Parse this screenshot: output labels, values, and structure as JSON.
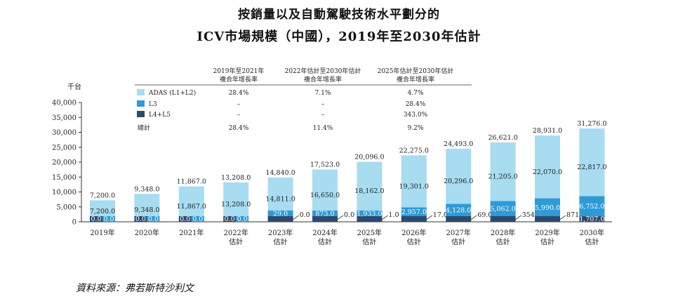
{
  "title_line1": "按銷量以及自動駕駛技術水平劃分的",
  "title_line2": "ICV市場規模（中國），2019年至2030年估計",
  "source": "資料來源：弗若斯特沙利文",
  "colors": {
    "adas": "#a7dcf1",
    "l3": "#2e9ad6",
    "l45": "#2c4a6e"
  },
  "cagr_table": {
    "headers": [
      [
        "2019年至2021年",
        "複合年增長率"
      ],
      [
        "2022年估計至2030年估計",
        "複合年增長率"
      ],
      [
        "2025年估計至2030年估計",
        "複合年增長率"
      ]
    ],
    "rows": [
      {
        "label": "ADAS (L1+L2)",
        "color": "#a7dcf1",
        "values": [
          "28.4%",
          "7.1%",
          "4.7%"
        ]
      },
      {
        "label": "L3",
        "color": "#2e9ad6",
        "values": [
          "–",
          "–",
          "28.4%"
        ]
      },
      {
        "label": "L4+L5",
        "color": "#2c4a6e",
        "values": [
          "–",
          "–",
          "343.0%"
        ]
      },
      {
        "label": "總計",
        "color": null,
        "values": [
          "28.4%",
          "11.4%",
          "9.2%"
        ]
      }
    ]
  },
  "chart_data": {
    "type": "bar",
    "stacked": true,
    "ylabel": "千台",
    "ylim": [
      0,
      40000
    ],
    "yticks": [
      "0",
      "5,000",
      "10,000",
      "15,000",
      "20,000",
      "25,000",
      "30,000",
      "35,000",
      "40,000"
    ],
    "categories": [
      [
        "2019年"
      ],
      [
        "2020年"
      ],
      [
        "2021年"
      ],
      [
        "2022年",
        "估計"
      ],
      [
        "2023年",
        "估計"
      ],
      [
        "2024年",
        "估計"
      ],
      [
        "2025年",
        "估計"
      ],
      [
        "2026年",
        "估計"
      ],
      [
        "2027年",
        "估計"
      ],
      [
        "2028年",
        "估計"
      ],
      [
        "2029年",
        "估計"
      ],
      [
        "2030年",
        "估計"
      ]
    ],
    "series": [
      {
        "name": "L4+L5",
        "values": [
          0.0,
          0.0,
          0.0,
          0.0,
          0.0,
          0.0,
          1.0,
          17.0,
          69.0,
          354.0,
          871.0,
          1707.0
        ],
        "labels": [
          "0.0",
          "0.0",
          "0.0",
          "0.0",
          "0.0",
          "0.0",
          "1.0",
          "17.0",
          "69.0",
          "354.0",
          "871.0",
          "1,707.0"
        ]
      },
      {
        "name": "L3",
        "values": [
          0.0,
          0.0,
          0.0,
          0.0,
          29.0,
          873.0,
          1933.0,
          2957.0,
          4128.0,
          5062.0,
          5990.0,
          6752.0
        ],
        "labels": [
          "0.0",
          "0.0",
          "0.0",
          "0.0",
          "29.0",
          "873.0",
          "1,933.0",
          "2,957.0",
          "4,128.0",
          "5,062.0",
          "5,990.0",
          "6,752.0"
        ]
      },
      {
        "name": "ADAS (L1+L2)",
        "values": [
          7200.0,
          9348.0,
          11867.0,
          13208.0,
          14811.0,
          16650.0,
          18162.0,
          19301.0,
          20296.0,
          21205.0,
          22070.0,
          22817.0
        ],
        "labels": [
          "7,200.0",
          "9,348.0",
          "11,867.0",
          "13,208.0",
          "14,811.0",
          "16,650.0",
          "18,162.0",
          "19,301.0",
          "20,296.0",
          "21,205.0",
          "22,070.0",
          "22,817.0"
        ]
      }
    ],
    "totals": [
      7200.0,
      9348.0,
      11867.0,
      13208.0,
      14840.0,
      17523.0,
      20096.0,
      22275.0,
      24493.0,
      26621.0,
      28931.0,
      31276.0
    ],
    "total_labels": [
      "7,200.0",
      "9,348.0",
      "11,867.0",
      "13,208.0",
      "14,840.0",
      "17,523.0",
      "20,096.0",
      "22,275.0",
      "24,493.0",
      "26,621.0",
      "28,931.0",
      "31,276.0"
    ]
  }
}
